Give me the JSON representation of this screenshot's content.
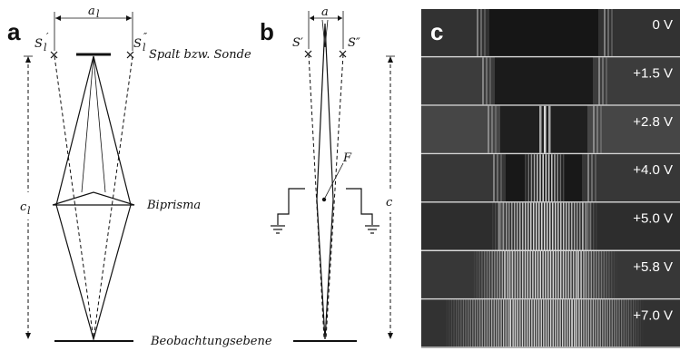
{
  "panel_a": {
    "letter": "a",
    "dim_top": "a",
    "dim_top_sub": "l",
    "source_left": "S",
    "source_left_sub": "l",
    "source_left_sup": "′",
    "source_right": "S",
    "source_right_sub": "l",
    "source_right_sup": "″",
    "slit_label": "Spalt bzw. Sonde",
    "biprism_label": "Biprisma",
    "dim_left": "c",
    "dim_left_sub": "l",
    "screen_label": "Beobachtungsebene"
  },
  "panel_b": {
    "letter": "b",
    "dim_top": "a",
    "source_left": "S′",
    "source_right": "S″",
    "filament_label": "F",
    "dim_right": "c"
  },
  "panel_c": {
    "letter": "c",
    "voltages": [
      "0 V",
      "+1.5 V",
      "+2.8 V",
      "+4.0 V",
      "+5.0 V",
      "+5.8 V",
      "+7.0 V"
    ]
  },
  "colors": {
    "fringe_bg": "#0b0b0b",
    "line": "#111111"
  }
}
